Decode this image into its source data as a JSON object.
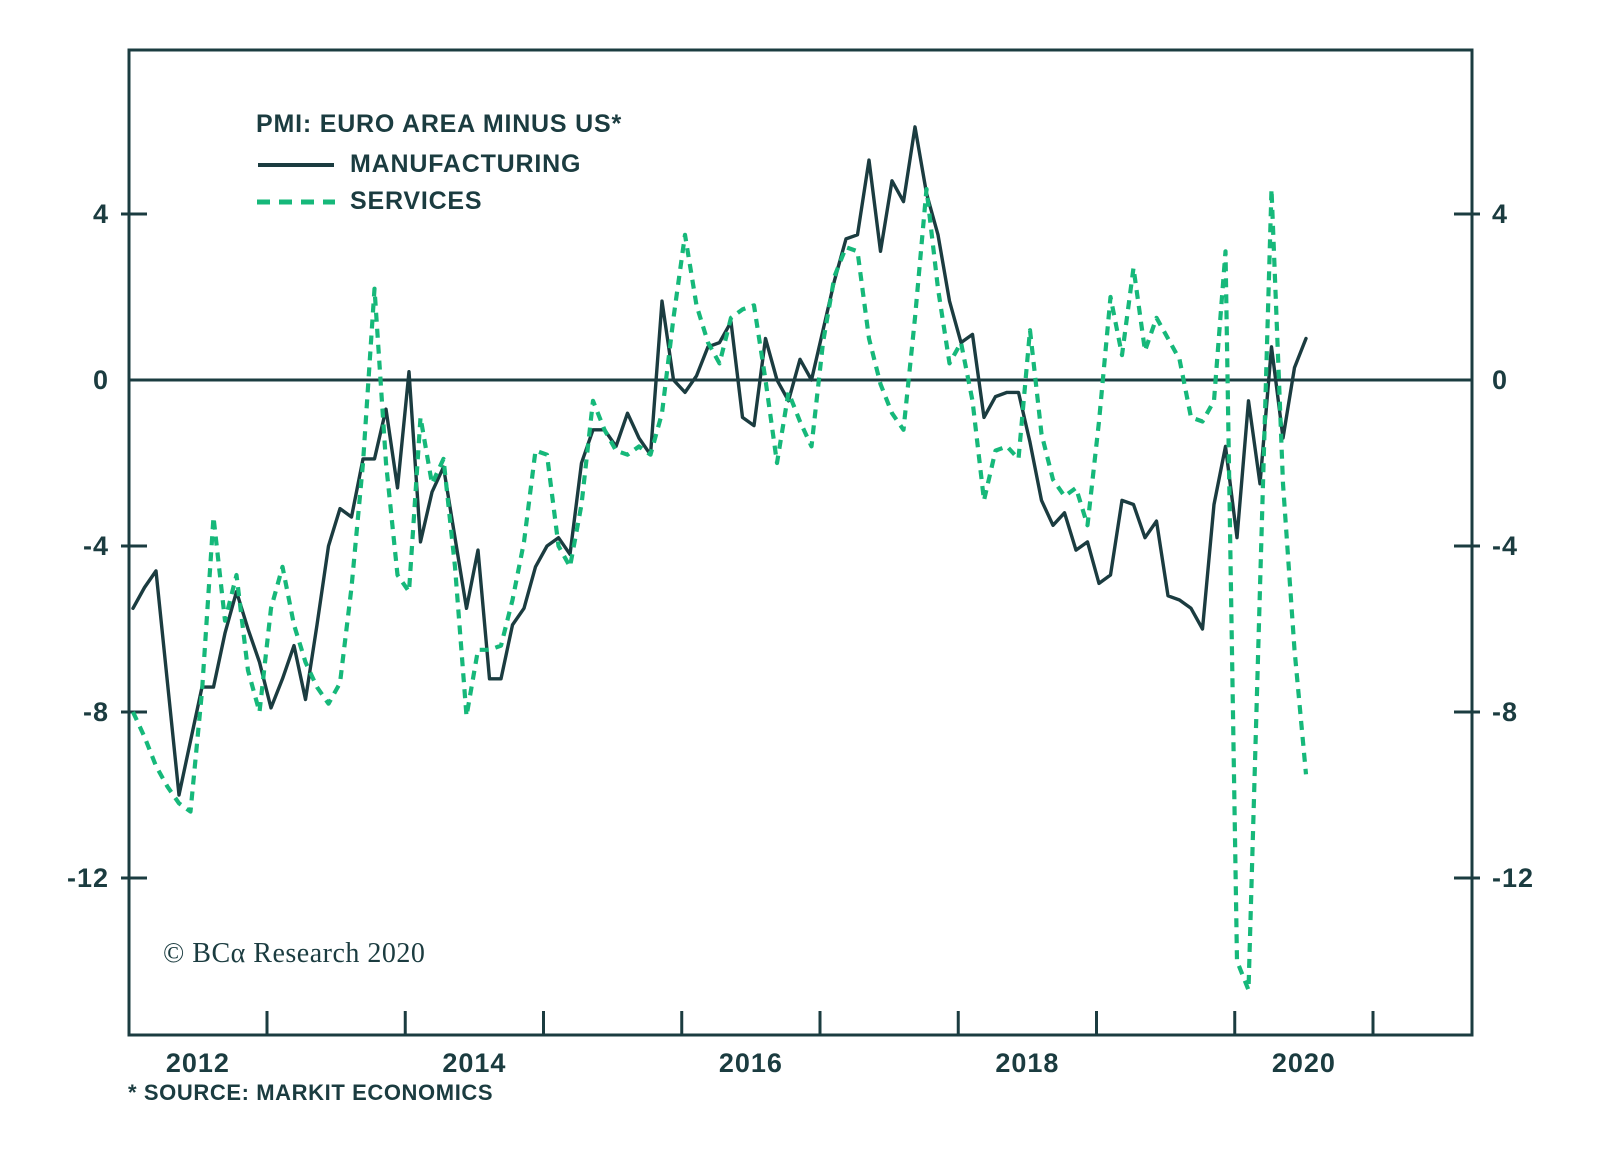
{
  "title": "PMI: EURO AREA MINUS US*",
  "copyright": "© BCα Research 2020",
  "source_note": "* SOURCE: MARKIT ECONOMICS",
  "colors": {
    "ink": "#1b3c40",
    "manufacturing": "#1b3c40",
    "services": "#16b87a",
    "background": "#ffffff"
  },
  "legend": {
    "items": [
      {
        "label": "MANUFACTURING",
        "style": "solid",
        "color": "#1b3c40"
      },
      {
        "label": "SERVICES",
        "style": "dashed",
        "color": "#16b87a"
      }
    ]
  },
  "chart_data": {
    "type": "line",
    "title": "PMI: EURO AREA MINUS US*",
    "xlabel": "",
    "ylabel": "",
    "x_unit": "monthly",
    "x_start": "2012-01",
    "x_end": "2020-07",
    "x_tick_labels": [
      "2012",
      "2014",
      "2016",
      "2018",
      "2020"
    ],
    "x_label_years": [
      2012,
      2014,
      2016,
      2018,
      2020
    ],
    "x_minor_tick_years": [
      2013,
      2014,
      2015,
      2016,
      2017,
      2018,
      2019,
      2020,
      2021
    ],
    "y_ticks": [
      4,
      0,
      -4,
      -8,
      -12
    ],
    "ylim": [
      -15.9,
      7.9
    ],
    "zero_line": true,
    "grid": false,
    "legend_position": "top-left-inside",
    "series": [
      {
        "name": "MANUFACTURING",
        "style": "solid",
        "color": "#1b3c40",
        "values": [
          -5.5,
          -5.0,
          -4.6,
          -7.3,
          -10.0,
          -8.7,
          -7.4,
          -7.4,
          -6.1,
          -5.1,
          -6.0,
          -6.8,
          -7.9,
          -7.2,
          -6.4,
          -7.7,
          -5.9,
          -4.0,
          -3.1,
          -3.3,
          -1.9,
          -1.9,
          -0.7,
          -2.6,
          0.2,
          -3.9,
          -2.7,
          -2.1,
          -3.8,
          -5.5,
          -4.1,
          -7.2,
          -7.2,
          -5.9,
          -5.5,
          -4.5,
          -4.0,
          -3.8,
          -4.2,
          -2.0,
          -1.2,
          -1.2,
          -1.6,
          -0.8,
          -1.4,
          -1.8,
          1.9,
          0.0,
          -0.3,
          0.1,
          0.8,
          0.9,
          1.4,
          -0.9,
          -1.1,
          1.0,
          0.0,
          -0.5,
          0.5,
          0.0,
          1.2,
          2.4,
          3.4,
          3.5,
          5.3,
          3.1,
          4.8,
          4.3,
          6.1,
          4.5,
          3.5,
          1.9,
          0.9,
          1.1,
          -0.9,
          -0.4,
          -0.3,
          -0.3,
          -1.5,
          -2.9,
          -3.5,
          -3.2,
          -4.1,
          -3.9,
          -4.9,
          -4.7,
          -2.9,
          -3.0,
          -3.8,
          -3.4,
          -5.2,
          -5.3,
          -5.5,
          -6.0,
          -3.0,
          -1.6,
          -3.8,
          -0.5,
          -2.5,
          0.8,
          -1.4,
          0.3,
          1.0
        ]
      },
      {
        "name": "SERVICES",
        "style": "dashed",
        "color": "#16b87a",
        "values": [
          -8.0,
          -8.6,
          -9.3,
          -9.8,
          -10.2,
          -10.4,
          -7.5,
          -3.3,
          -5.8,
          -4.7,
          -7.0,
          -8.0,
          -5.5,
          -4.5,
          -5.9,
          -6.8,
          -7.4,
          -7.8,
          -7.3,
          -5.0,
          -2.0,
          2.2,
          -2.0,
          -4.7,
          -5.1,
          -0.9,
          -2.5,
          -1.9,
          -4.5,
          -8.1,
          -6.5,
          -6.5,
          -6.4,
          -5.3,
          -3.9,
          -1.7,
          -1.8,
          -4.0,
          -4.5,
          -3.0,
          -0.5,
          -1.2,
          -1.7,
          -1.8,
          -1.6,
          -1.8,
          -0.8,
          1.5,
          3.5,
          1.8,
          0.9,
          0.4,
          1.5,
          1.7,
          1.8,
          0.0,
          -2.0,
          -0.3,
          -1.0,
          -1.6,
          0.9,
          2.5,
          3.2,
          3.1,
          1.0,
          -0.1,
          -0.8,
          -1.2,
          1.5,
          4.6,
          2.2,
          0.4,
          0.9,
          -0.5,
          -2.9,
          -1.7,
          -1.6,
          -1.9,
          1.2,
          -1.3,
          -2.4,
          -2.8,
          -2.6,
          -3.5,
          -1.0,
          2.0,
          0.6,
          2.7,
          0.7,
          1.5,
          1.0,
          0.5,
          -0.9,
          -1.0,
          -0.5,
          3.1,
          -14.0,
          -14.7,
          -5.0,
          4.6,
          -2.5,
          -6.5,
          -9.5
        ]
      }
    ]
  }
}
